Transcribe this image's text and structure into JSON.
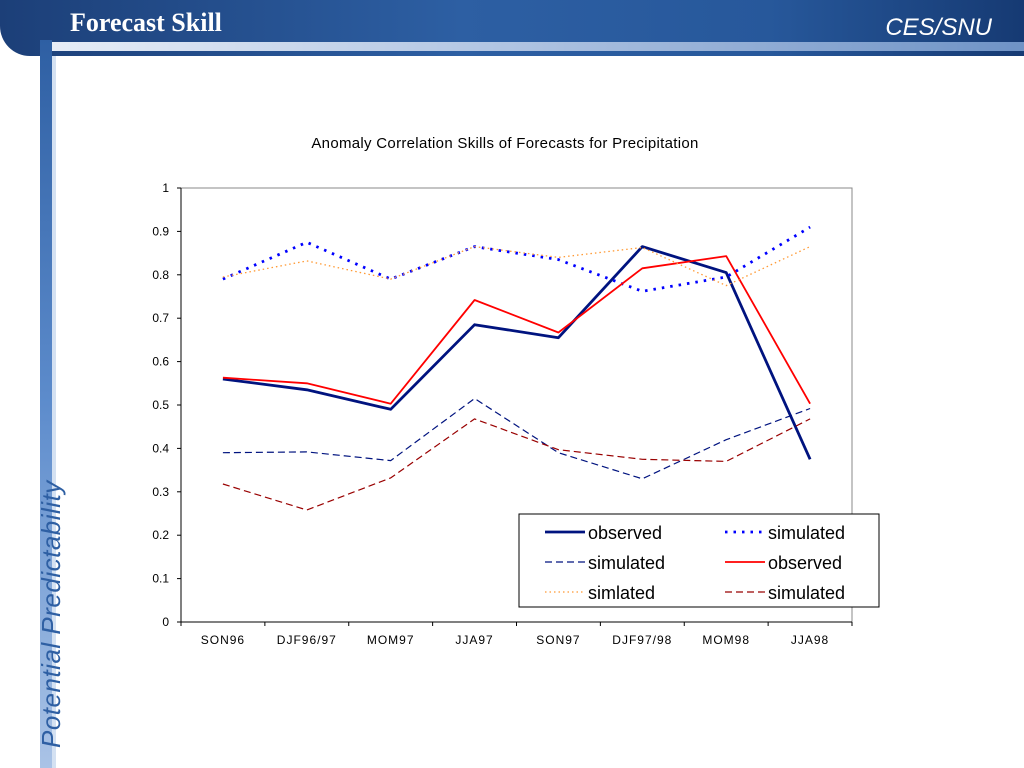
{
  "slide": {
    "title": "Forecast Skill",
    "org": "CES/SNU",
    "side_label": "Potential  Predictability"
  },
  "colors": {
    "header": "#2d5fa3",
    "navy": "#00137f",
    "blue": "#0000ff",
    "red": "#ff0000",
    "orange": "#ff9933",
    "darkred": "#990000"
  },
  "chart_data": {
    "type": "line",
    "title": "Anomaly Correlation Skills of Forecasts for Precipitation",
    "categories": [
      "SON96",
      "DJF96/97",
      "MOM97",
      "JJA97",
      "SON97",
      "DJF97/98",
      "MOM98",
      "JJA98"
    ],
    "ylim": [
      0,
      1
    ],
    "yticks": [
      "0",
      "0.1",
      "0.2",
      "0.3",
      "0.4",
      "0.5",
      "0.6",
      "0.7",
      "0.8",
      "0.9",
      "1"
    ],
    "grid": false,
    "legend_position": "bottom-right",
    "series": [
      {
        "name": "observed",
        "color": "#00137f",
        "style": "solid",
        "width": 2.8,
        "values": [
          0.56,
          0.535,
          0.49,
          0.685,
          0.655,
          0.865,
          0.805,
          0.375
        ]
      },
      {
        "name": "simulated",
        "color": "#0000ff",
        "style": "dotted",
        "width": 2.8,
        "values": [
          0.79,
          0.875,
          0.79,
          0.865,
          0.835,
          0.762,
          0.795,
          0.91
        ]
      },
      {
        "name": "simulated",
        "color": "#00137f",
        "style": "dashed",
        "width": 1.2,
        "values": [
          0.39,
          0.392,
          0.372,
          0.515,
          0.39,
          0.33,
          0.42,
          0.492
        ]
      },
      {
        "name": "observed",
        "color": "#ff0000",
        "style": "solid",
        "width": 1.8,
        "values": [
          0.563,
          0.55,
          0.503,
          0.742,
          0.667,
          0.815,
          0.843,
          0.503
        ]
      },
      {
        "name": "simlated",
        "color": "#ff9933",
        "style": "dotted",
        "width": 1.3,
        "values": [
          0.795,
          0.832,
          0.79,
          0.865,
          0.84,
          0.863,
          0.775,
          0.865
        ]
      },
      {
        "name": "simulated",
        "color": "#990000",
        "style": "dashed",
        "width": 1.2,
        "values": [
          0.318,
          0.258,
          0.332,
          0.468,
          0.397,
          0.375,
          0.37,
          0.468
        ]
      }
    ]
  }
}
